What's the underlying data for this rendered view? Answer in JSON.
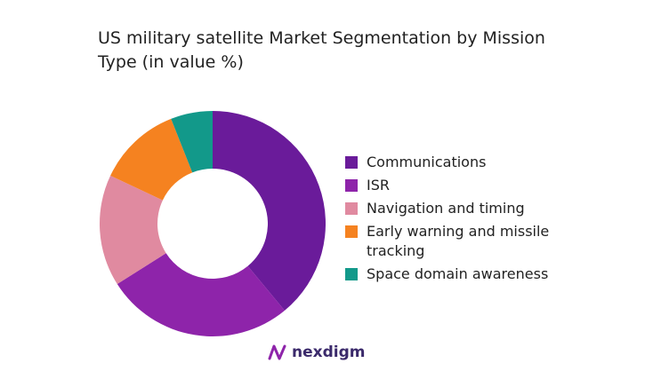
{
  "chart_data": {
    "type": "donut",
    "title": "US military satellite Market Segmentation by Mission Type (in value %)",
    "categories": [
      "Communications",
      "ISR",
      "Navigation and timing",
      "Early warning and missile tracking",
      "Space domain awareness"
    ],
    "values": [
      39,
      27,
      16,
      12,
      6
    ],
    "colors": [
      "#6a1b9a",
      "#8e24aa",
      "#e08aa0",
      "#f58220",
      "#12998a"
    ],
    "legend": "right"
  },
  "logo": "nexdigm"
}
